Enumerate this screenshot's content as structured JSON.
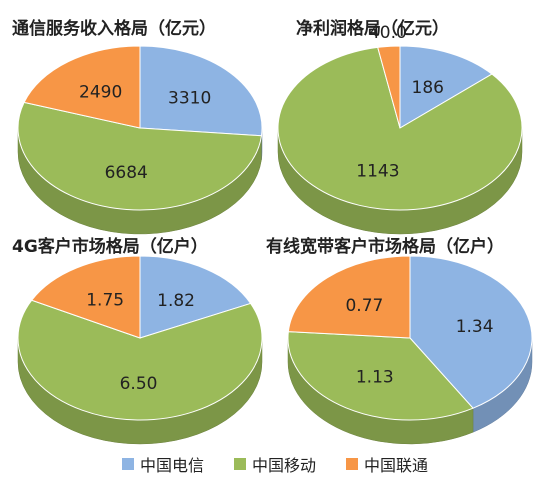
{
  "colors": {
    "telecom": "#8EB4E3",
    "mobile": "#9BBB59",
    "unicom": "#F79646"
  },
  "chart_data": [
    {
      "type": "pie",
      "title": "通信服务收入格局（亿元）",
      "slices": [
        {
          "company": "中国电信",
          "value_label": "3310",
          "value": 3310
        },
        {
          "company": "中国移动",
          "value_label": "6684",
          "value": 6684
        },
        {
          "company": "中国联通",
          "value_label": "2490",
          "value": 2490
        }
      ]
    },
    {
      "type": "pie",
      "title": "净利润格局（亿元）",
      "slices": [
        {
          "company": "中国电信",
          "value_label": "186",
          "value": 186
        },
        {
          "company": "中国移动",
          "value_label": "1143",
          "value": 1143
        },
        {
          "company": "中国联通",
          "value_label": "40.0",
          "value": 40.0
        }
      ]
    },
    {
      "type": "pie",
      "title": "4G客户市场格局（亿户）",
      "slices": [
        {
          "company": "中国电信",
          "value_label": "1.82",
          "value": 1.82
        },
        {
          "company": "中国移动",
          "value_label": "6.50",
          "value": 6.5
        },
        {
          "company": "中国联通",
          "value_label": "1.75",
          "value": 1.75
        }
      ]
    },
    {
      "type": "pie",
      "title": "有线宽带客户市场格局（亿户）",
      "slices": [
        {
          "company": "中国电信",
          "value_label": "1.34",
          "value": 1.34
        },
        {
          "company": "中国移动",
          "value_label": "1.13",
          "value": 1.13
        },
        {
          "company": "中国联通",
          "value_label": "0.77",
          "value": 0.77
        }
      ]
    }
  ],
  "legend": [
    {
      "label": "中国电信",
      "color_key": "telecom"
    },
    {
      "label": "中国移动",
      "color_key": "mobile"
    },
    {
      "label": "中国联通",
      "color_key": "unicom"
    }
  ]
}
